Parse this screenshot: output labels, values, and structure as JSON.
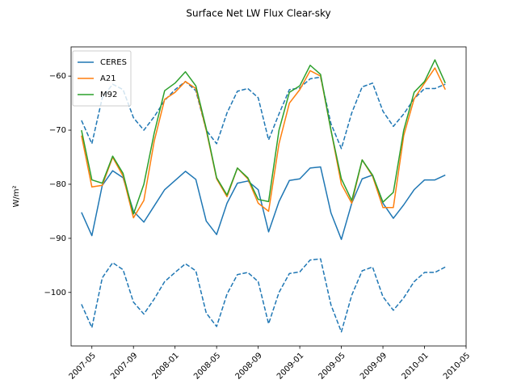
{
  "chart_data": {
    "type": "line",
    "title": "Surface Net LW Flux Clear-sky",
    "y_label": "W/m²",
    "x": [
      "2007-04",
      "2007-05",
      "2007-06",
      "2007-07",
      "2007-08",
      "2007-09",
      "2007-10",
      "2007-11",
      "2007-12",
      "2008-01",
      "2008-02",
      "2008-03",
      "2008-04",
      "2008-05",
      "2008-06",
      "2008-07",
      "2008-08",
      "2008-09",
      "2008-10",
      "2008-11",
      "2008-12",
      "2009-01",
      "2009-02",
      "2009-03",
      "2009-04",
      "2009-05",
      "2009-06",
      "2009-07",
      "2009-08",
      "2009-09",
      "2009-10",
      "2009-11",
      "2009-12",
      "2010-01",
      "2010-02",
      "2010-03"
    ],
    "xlim": [
      "2007-03",
      "2010-05"
    ],
    "xticks": [
      "2007-05",
      "2007-09",
      "2008-01",
      "2008-05",
      "2008-09",
      "2009-01",
      "2009-05",
      "2009-09",
      "2010-01",
      "2010-05"
    ],
    "ylim": [
      -109.9,
      -54.6
    ],
    "yticks": [
      {
        "value": -100,
        "label": "−100"
      },
      {
        "value": -90,
        "label": "−90"
      },
      {
        "value": -80,
        "label": "−80"
      },
      {
        "value": -70,
        "label": "−70"
      },
      {
        "value": -60,
        "label": "−60"
      }
    ],
    "legend": "upper left",
    "grid": false,
    "series": [
      {
        "name": "CERES",
        "color": "#1f77b4",
        "values": [
          -85.2,
          -89.5,
          -80.2,
          -77.5,
          -78.8,
          -85,
          -87,
          -84,
          -81,
          -79.3,
          -77.6,
          -79.1,
          -86.8,
          -89.3,
          -83.5,
          -79.8,
          -79.4,
          -81,
          -88.8,
          -83.2,
          -79.3,
          -79,
          -77,
          -76.8,
          -85.3,
          -90.2,
          -83.5,
          -79,
          -78.3,
          -83.5,
          -86.3,
          -83.8,
          -81,
          -79.2,
          -79.2,
          -78.3
        ],
        "upper": [
          -68.2,
          -72.5,
          -64,
          -61.5,
          -62.5,
          -67.7,
          -70,
          -67.5,
          -64.5,
          -62.5,
          -61,
          -62.7,
          -70,
          -72.5,
          -66.8,
          -62.8,
          -62.3,
          -64,
          -71.8,
          -67,
          -62.5,
          -62.2,
          -60.5,
          -60.2,
          -68.8,
          -73.4,
          -66.8,
          -62,
          -61.3,
          -66.5,
          -69.3,
          -67,
          -64.2,
          -62.3,
          -62.3,
          -61.5
        ],
        "lower": [
          -102.2,
          -106.5,
          -97.3,
          -94.5,
          -95.8,
          -101.8,
          -104,
          -101.2,
          -98,
          -96.3,
          -94.7,
          -96,
          -103.8,
          -106.3,
          -100.3,
          -96.7,
          -96.3,
          -98,
          -105.8,
          -100,
          -96.5,
          -96.2,
          -94,
          -93.8,
          -102.3,
          -107.3,
          -100.5,
          -96,
          -95.3,
          -100.8,
          -103.3,
          -101,
          -98,
          -96.3,
          -96.3,
          -95.3
        ],
        "band_style": "dashed"
      },
      {
        "name": "A21",
        "color": "#ff7f0e",
        "values": [
          -71,
          -80.5,
          -80.2,
          -75,
          -78.5,
          -86.2,
          -83,
          -72,
          -64.3,
          -63,
          -61,
          -62.3,
          -70,
          -79,
          -82.3,
          -77,
          -79,
          -83.5,
          -85,
          -72.5,
          -65,
          -62.5,
          -59,
          -60,
          -70,
          -80,
          -83.5,
          -75.5,
          -78.5,
          -84.3,
          -84.3,
          -71,
          -64.2,
          -61.3,
          -58.5,
          -62.5
        ]
      },
      {
        "name": "M92",
        "color": "#2ca02c",
        "values": [
          -70,
          -79.2,
          -79.8,
          -74.8,
          -78,
          -85.5,
          -80,
          -70.5,
          -62.7,
          -61.3,
          -59.2,
          -61.8,
          -69.7,
          -78.8,
          -82,
          -77,
          -78.8,
          -82.8,
          -83.2,
          -70,
          -63,
          -61.8,
          -58,
          -59.7,
          -70,
          -79,
          -83,
          -75.5,
          -78.3,
          -83.3,
          -81.5,
          -70,
          -63,
          -61,
          -57,
          -61.3
        ]
      }
    ]
  }
}
